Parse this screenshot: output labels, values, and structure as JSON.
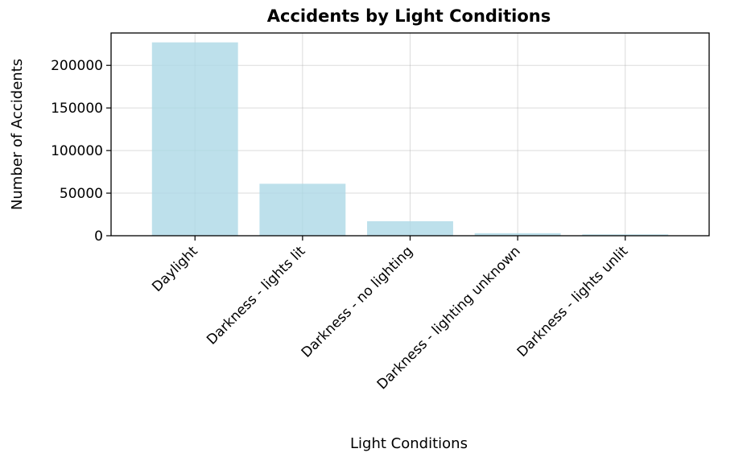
{
  "chart_data": {
    "type": "bar",
    "title": "Accidents by Light Conditions",
    "xlabel": "Light Conditions",
    "ylabel": "Number of Accidents",
    "categories": [
      "Daylight",
      "Darkness - lights lit",
      "Darkness - no lighting",
      "Darkness - lighting unknown",
      "Darkness - lights unlit"
    ],
    "values": [
      227000,
      61000,
      17000,
      3000,
      1600
    ],
    "ylim": [
      0,
      238000
    ],
    "yticks": [
      0,
      50000,
      100000,
      150000,
      200000
    ],
    "ytick_labels": [
      "0",
      "50000",
      "100000",
      "150000",
      "200000"
    ],
    "grid": true,
    "bar_color": "#add8e6"
  }
}
